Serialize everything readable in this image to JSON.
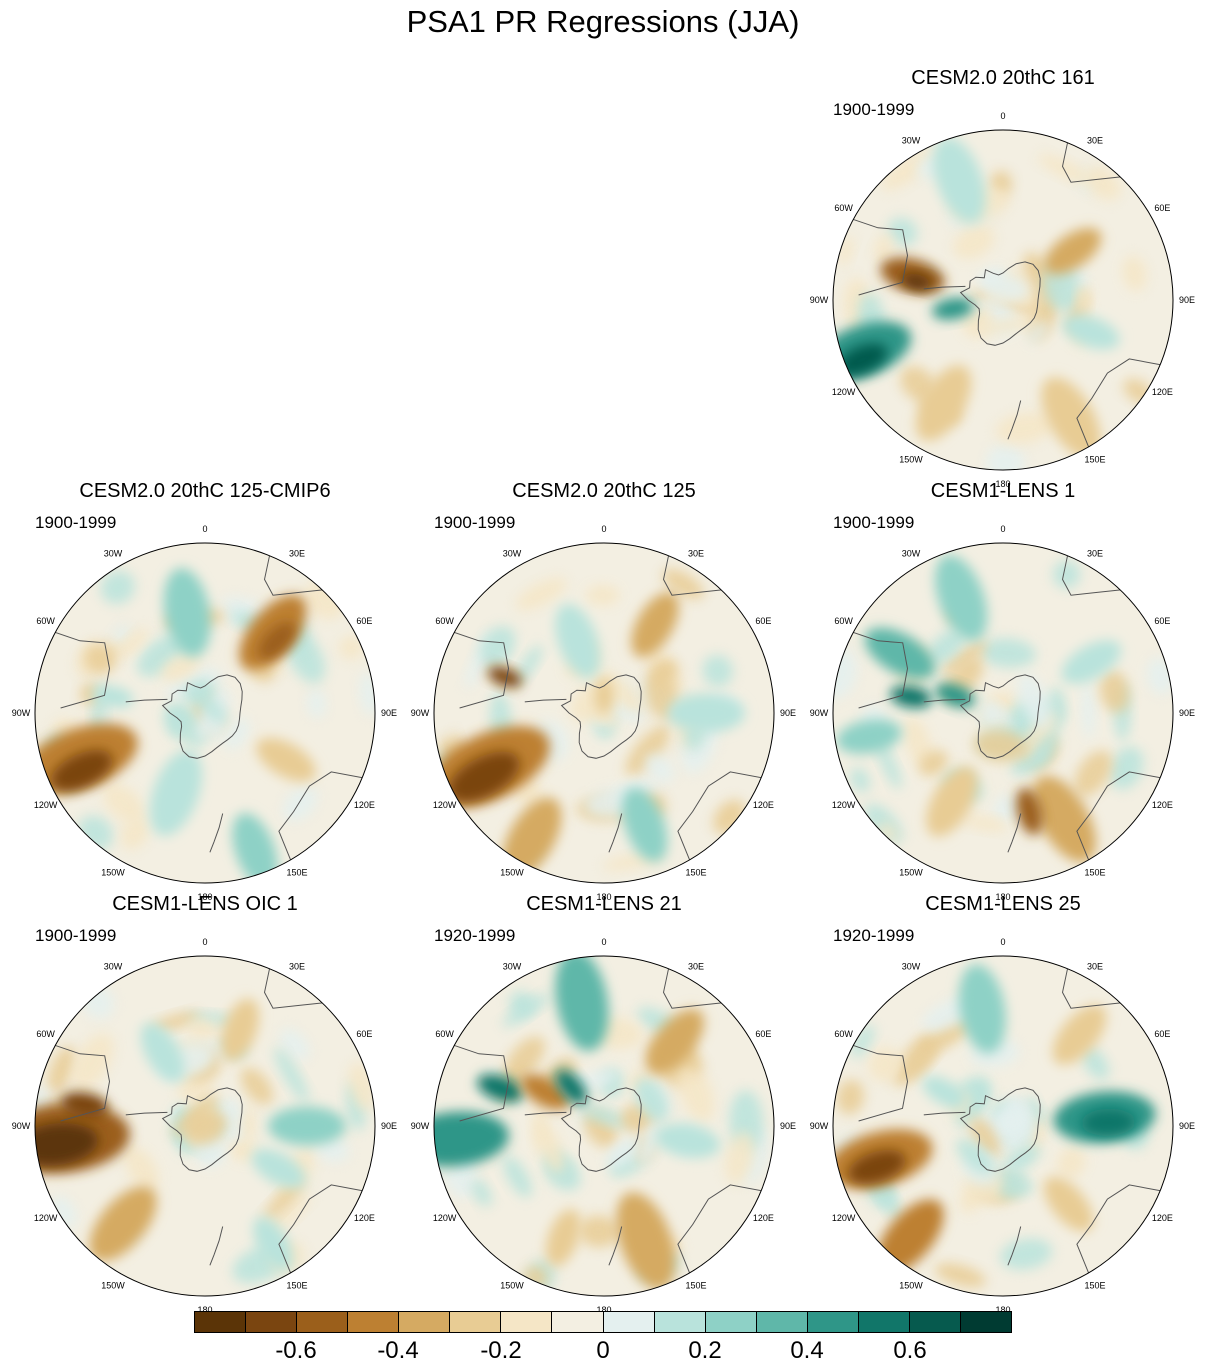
{
  "title": "PSA1 PR Regressions (JJA)",
  "lon_labels": [
    "0",
    "30E",
    "60E",
    "90E",
    "120E",
    "150E",
    "180",
    "150W",
    "120W",
    "90W",
    "60W",
    "30W"
  ],
  "panels": [
    {
      "title": "CESM2.0 20thC 161",
      "period": "1900-1999"
    },
    {
      "title": "CESM2.0 20thC 125-CMIP6",
      "period": "1900-1999"
    },
    {
      "title": "CESM2.0 20thC 125",
      "period": "1900-1999"
    },
    {
      "title": "CESM1-LENS 1",
      "period": "1900-1999"
    },
    {
      "title": "CESM1-LENS OIC 1",
      "period": "1900-1999"
    },
    {
      "title": "CESM1-LENS 21",
      "period": "1920-1999"
    },
    {
      "title": "CESM1-LENS 25",
      "period": "1920-1999"
    }
  ],
  "colorbar": {
    "colors": [
      "#5b3407",
      "#7a4510",
      "#9b5f1b",
      "#bd8032",
      "#d5aa62",
      "#e8cc94",
      "#f5e6c6",
      "#f3efe2",
      "#e4f0ef",
      "#b9e3dc",
      "#8ed1c6",
      "#5fb7a9",
      "#2f9688",
      "#117669",
      "#065a4e",
      "#003b32"
    ],
    "labels": [
      "-0.6",
      "-0.4",
      "-0.2",
      "0",
      "0.2",
      "0.4",
      "0.6"
    ]
  }
}
